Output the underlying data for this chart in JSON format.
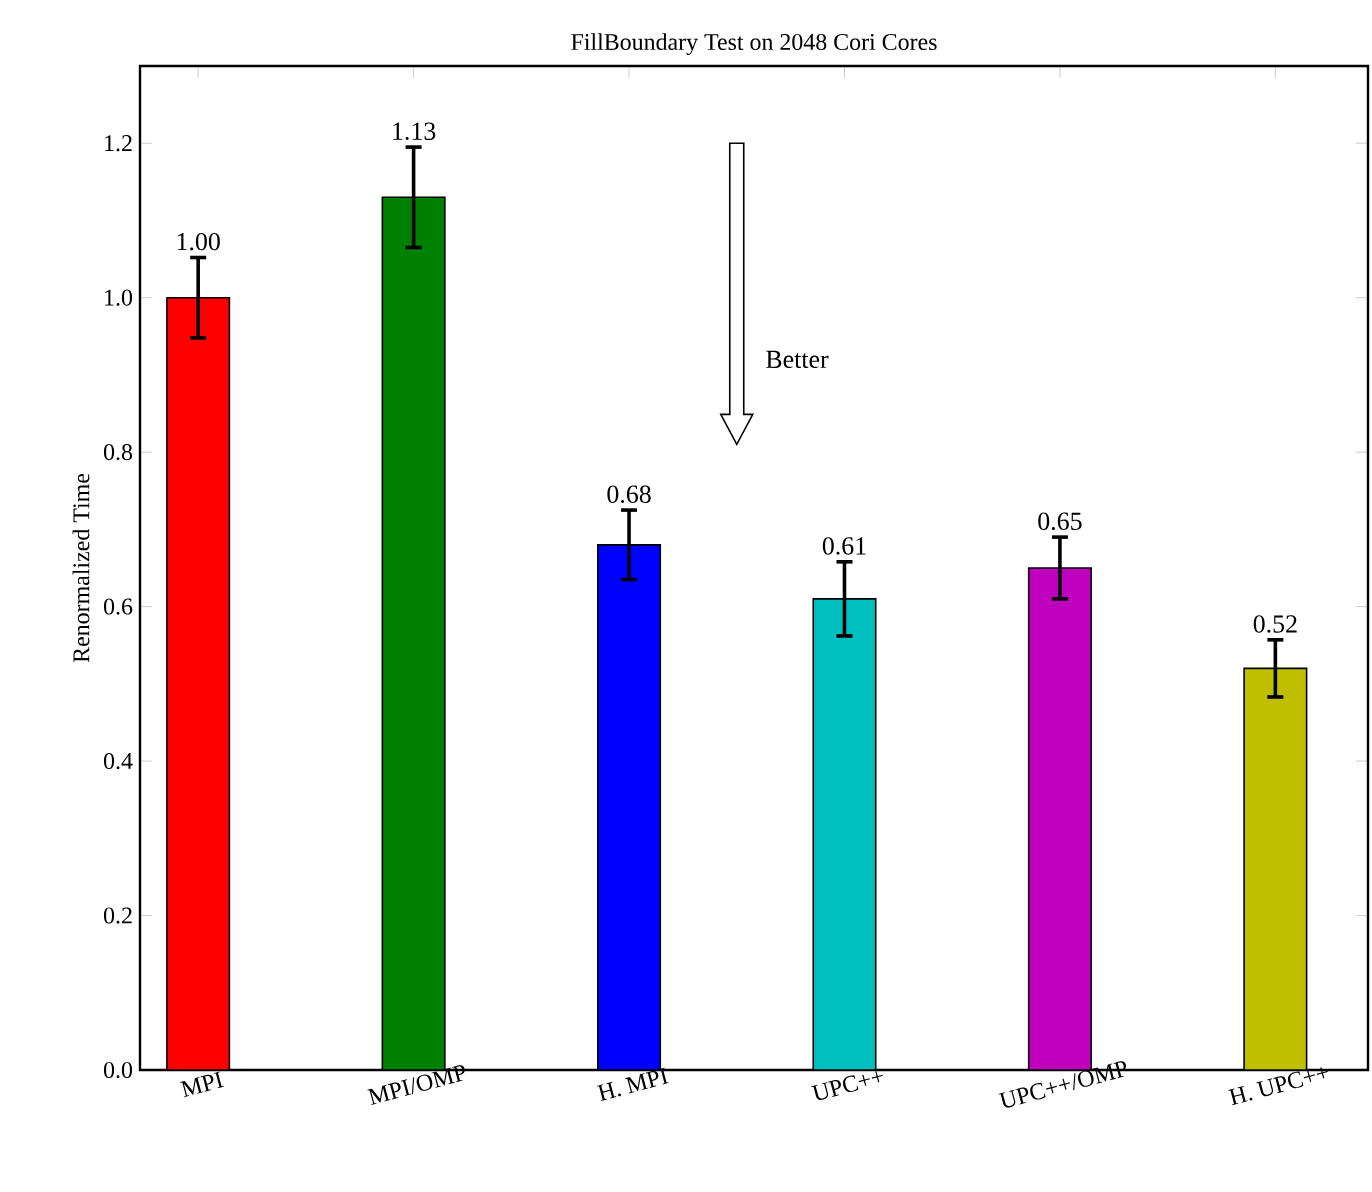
{
  "chart_data": {
    "type": "bar",
    "title": "FillBoundary Test on 2048 Cori Cores",
    "ylabel": "Renormalized Time",
    "categories": [
      "MPI",
      "MPI/OMP",
      "H. MPI",
      "UPC++",
      "UPC++/OMP",
      "H. UPC++"
    ],
    "values": [
      1.0,
      1.13,
      0.68,
      0.61,
      0.65,
      0.52
    ],
    "colors": [
      "#ff0000",
      "#008000",
      "#0000ff",
      "#00bfbf",
      "#bf00bf",
      "#bfbf00"
    ],
    "errors": [
      0.052,
      0.065,
      0.045,
      0.048,
      0.04,
      0.037
    ],
    "value_labels": [
      "1.00",
      "1.13",
      "0.68",
      "0.61",
      "0.65",
      "0.52"
    ],
    "ylim": [
      0,
      1.3
    ],
    "yticks": [
      {
        "value": 0,
        "label": "0.0"
      },
      {
        "value": 0.2,
        "label": "0.2"
      },
      {
        "value": 0.4,
        "label": "0.4"
      },
      {
        "value": 0.6,
        "label": "0.6"
      },
      {
        "value": 0.8,
        "label": "0.8"
      },
      {
        "value": 1.0,
        "label": "1.0"
      },
      {
        "value": 1.2,
        "label": "1.2"
      }
    ],
    "annotations": [
      "Better"
    ]
  }
}
